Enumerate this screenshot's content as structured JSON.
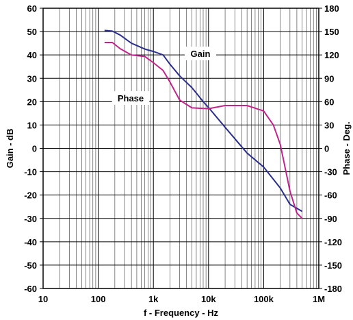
{
  "chart_data": {
    "type": "line",
    "xlabel": "f - Frequency - Hz",
    "ylabel_left": "Gain - dB",
    "ylabel_right": "Phase - Deg.",
    "x_scale": "log",
    "xlim": [
      10,
      1000000
    ],
    "ylim_left": [
      -60,
      60
    ],
    "ylim_right": [
      -180,
      180
    ],
    "grid": true,
    "x_ticks": [
      {
        "value": 10,
        "label": "10"
      },
      {
        "value": 100,
        "label": "100"
      },
      {
        "value": 1000,
        "label": "1k"
      },
      {
        "value": 10000,
        "label": "10k"
      },
      {
        "value": 100000,
        "label": "100k"
      },
      {
        "value": 1000000,
        "label": "1M"
      }
    ],
    "y_left_ticks": [
      60,
      50,
      40,
      30,
      20,
      10,
      0,
      -10,
      -20,
      -30,
      -40,
      -50,
      -60
    ],
    "y_right_ticks": [
      180,
      150,
      120,
      90,
      60,
      30,
      0,
      -30,
      -60,
      -90,
      -120,
      -150,
      -180
    ],
    "series": [
      {
        "name": "Gain",
        "axis": "left",
        "color": "#2b2f8c",
        "points": [
          [
            130,
            50.5
          ],
          [
            180,
            50.2
          ],
          [
            250,
            48.5
          ],
          [
            400,
            45
          ],
          [
            700,
            42.5
          ],
          [
            1000,
            41.5
          ],
          [
            1500,
            40
          ],
          [
            2000,
            36
          ],
          [
            3000,
            31
          ],
          [
            5000,
            26
          ],
          [
            8000,
            20
          ],
          [
            10000,
            17.5
          ],
          [
            20000,
            9
          ],
          [
            50000,
            -2
          ],
          [
            100000,
            -8
          ],
          [
            200000,
            -17
          ],
          [
            300000,
            -24
          ],
          [
            500000,
            -27
          ]
        ]
      },
      {
        "name": "Phase",
        "axis": "right",
        "color": "#c0248a",
        "points": [
          [
            130,
            136
          ],
          [
            180,
            136
          ],
          [
            250,
            128
          ],
          [
            400,
            120
          ],
          [
            700,
            118
          ],
          [
            1000,
            110
          ],
          [
            1500,
            100
          ],
          [
            2000,
            85
          ],
          [
            3000,
            62
          ],
          [
            5000,
            52
          ],
          [
            10000,
            51
          ],
          [
            20000,
            55
          ],
          [
            50000,
            55
          ],
          [
            100000,
            48
          ],
          [
            150000,
            30
          ],
          [
            200000,
            5
          ],
          [
            300000,
            -55
          ],
          [
            400000,
            -83
          ],
          [
            500000,
            -90
          ]
        ]
      }
    ],
    "annotations": [
      {
        "text": "Gain",
        "series": "Gain"
      },
      {
        "text": "Phase",
        "series": "Phase"
      }
    ]
  }
}
